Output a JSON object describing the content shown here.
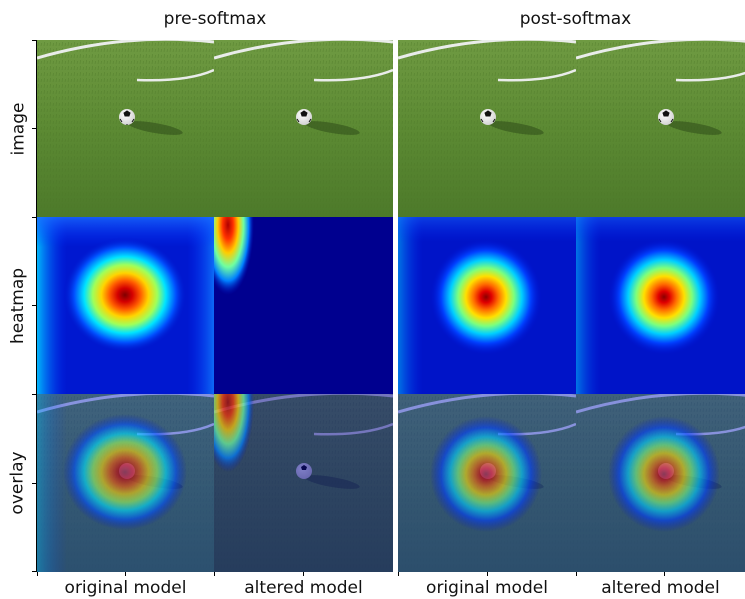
{
  "figure": {
    "groups": [
      {
        "id": "pre",
        "title": "pre-softmax"
      },
      {
        "id": "post",
        "title": "post-softmax"
      }
    ],
    "row_labels": [
      "image",
      "heatmap",
      "overlay"
    ],
    "column_labels": [
      "original model",
      "altered model",
      "original model",
      "altered model"
    ],
    "colors": {
      "grass": "#5f8a36",
      "heatmap_background": "#00008f",
      "separator": "#ffffff"
    },
    "icons": {
      "ball": "soccer-ball-icon"
    }
  }
}
